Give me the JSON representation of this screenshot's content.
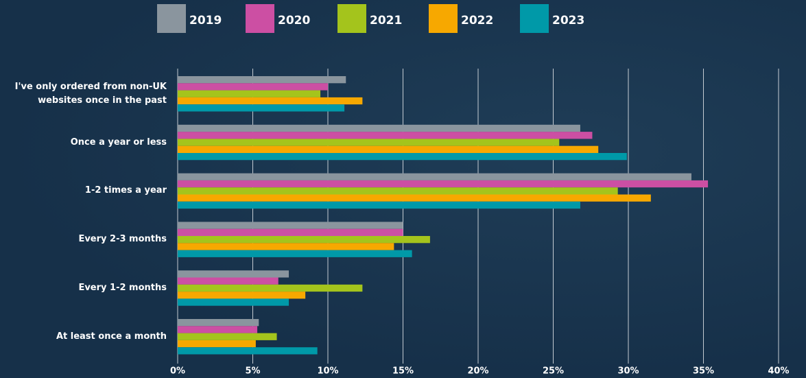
{
  "chart_data": {
    "type": "hbar",
    "categories": [
      "I've only ordered from non-UK websites once in the past",
      "Once a year or less",
      "1-2 times a year",
      "Every 2-3 months",
      "Every 1-2 months",
      "At least once a month"
    ],
    "series": [
      {
        "name": "2019",
        "color": "#8a959e",
        "values": [
          11.2,
          26.8,
          34.2,
          15.0,
          7.4,
          5.4
        ]
      },
      {
        "name": "2020",
        "color": "#cc4fa3",
        "values": [
          10.0,
          27.6,
          35.3,
          15.0,
          6.7,
          5.3
        ]
      },
      {
        "name": "2021",
        "color": "#a4c41c",
        "values": [
          9.5,
          25.4,
          29.3,
          16.8,
          12.3,
          6.6
        ]
      },
      {
        "name": "2022",
        "color": "#f7a800",
        "values": [
          12.3,
          28.0,
          31.5,
          14.4,
          8.5,
          5.2
        ]
      },
      {
        "name": "2023",
        "color": "#0099a8",
        "values": [
          11.1,
          29.9,
          26.8,
          15.6,
          7.4,
          9.3
        ]
      }
    ],
    "xlim": [
      0,
      40
    ],
    "xticks": [
      {
        "value": 0,
        "label": "0%"
      },
      {
        "value": 5,
        "label": "5%"
      },
      {
        "value": 10,
        "label": "10%"
      },
      {
        "value": 15,
        "label": "15%"
      },
      {
        "value": 20,
        "label": "20%"
      },
      {
        "value": 25,
        "label": "25%"
      },
      {
        "value": 30,
        "label": "30%"
      },
      {
        "value": 35,
        "label": "35%"
      },
      {
        "value": 40,
        "label": "40%"
      }
    ],
    "grid": true,
    "legend": "top"
  }
}
